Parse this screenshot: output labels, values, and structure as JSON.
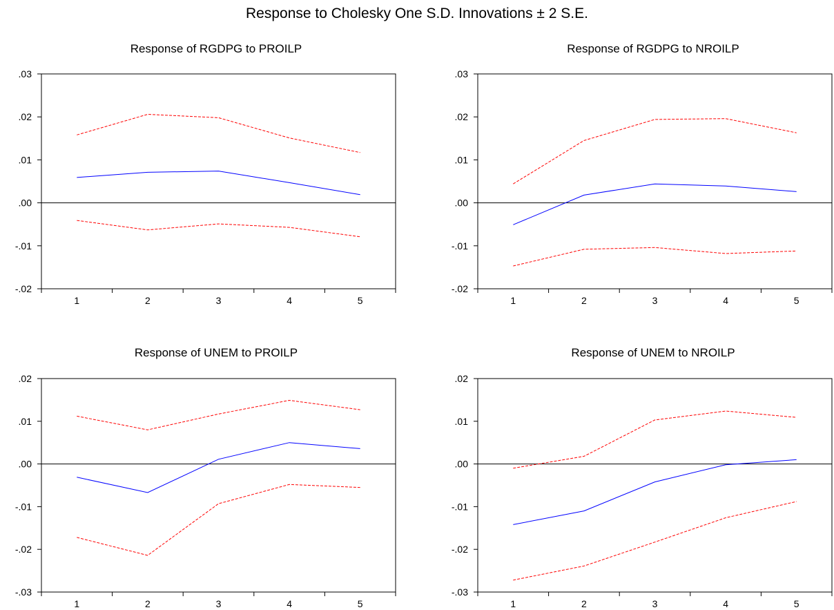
{
  "title": "Response to Cholesky One S.D. Innovations ± 2 S.E.",
  "colors": {
    "response": "#0000ff",
    "bands": "#ff0000",
    "frame": "#000000"
  },
  "chart_data": [
    {
      "type": "line",
      "title": "Response of RGDPG to PROILP",
      "categories": [
        "1",
        "2",
        "3",
        "4",
        "5"
      ],
      "ylim": [
        -0.02,
        0.03
      ],
      "yticks": [
        ".03",
        ".02",
        ".01",
        ".00",
        "-.01",
        "-.02"
      ],
      "ytick_values": [
        0.03,
        0.02,
        0.01,
        0.0,
        -0.01,
        -0.02
      ],
      "zero_line": true,
      "series": [
        {
          "role": "response",
          "style": "solid",
          "color": "#0000ff",
          "values": [
            0.0059,
            0.0071,
            0.0074,
            0.0047,
            0.0019
          ]
        },
        {
          "role": "upper",
          "style": "dashed",
          "color": "#ff0000",
          "values": [
            0.0158,
            0.0206,
            0.0198,
            0.0151,
            0.0117
          ]
        },
        {
          "role": "lower",
          "style": "dashed",
          "color": "#ff0000",
          "values": [
            -0.0041,
            -0.0063,
            -0.0049,
            -0.0057,
            -0.0079
          ]
        }
      ]
    },
    {
      "type": "line",
      "title": "Response of RGDPG to NROILP",
      "categories": [
        "1",
        "2",
        "3",
        "4",
        "5"
      ],
      "ylim": [
        -0.02,
        0.03
      ],
      "yticks": [
        ".03",
        ".02",
        ".01",
        ".00",
        "-.01",
        "-.02"
      ],
      "ytick_values": [
        0.03,
        0.02,
        0.01,
        0.0,
        -0.01,
        -0.02
      ],
      "zero_line": true,
      "series": [
        {
          "role": "response",
          "style": "solid",
          "color": "#0000ff",
          "values": [
            -0.0051,
            0.0018,
            0.0044,
            0.0039,
            0.0026
          ]
        },
        {
          "role": "upper",
          "style": "dashed",
          "color": "#ff0000",
          "values": [
            0.0044,
            0.0145,
            0.0194,
            0.0196,
            0.0163
          ]
        },
        {
          "role": "lower",
          "style": "dashed",
          "color": "#ff0000",
          "values": [
            -0.0147,
            -0.0108,
            -0.0104,
            -0.0118,
            -0.0112
          ]
        }
      ]
    },
    {
      "type": "line",
      "title": "Response of UNEM to PROILP",
      "categories": [
        "1",
        "2",
        "3",
        "4",
        "5"
      ],
      "ylim": [
        -0.03,
        0.02
      ],
      "yticks": [
        ".02",
        ".01",
        ".00",
        "-.01",
        "-.02",
        "-.03"
      ],
      "ytick_values": [
        0.02,
        0.01,
        0.0,
        -0.01,
        -0.02,
        -0.03
      ],
      "zero_line": true,
      "series": [
        {
          "role": "response",
          "style": "solid",
          "color": "#0000ff",
          "values": [
            -0.0031,
            -0.0067,
            0.0011,
            0.005,
            0.0036
          ]
        },
        {
          "role": "upper",
          "style": "dashed",
          "color": "#ff0000",
          "values": [
            0.0112,
            0.008,
            0.0117,
            0.0149,
            0.0127
          ]
        },
        {
          "role": "lower",
          "style": "dashed",
          "color": "#ff0000",
          "values": [
            -0.0172,
            -0.0214,
            -0.0093,
            -0.0048,
            -0.0055
          ]
        }
      ]
    },
    {
      "type": "line",
      "title": "Response of UNEM to NROILP",
      "categories": [
        "1",
        "2",
        "3",
        "4",
        "5"
      ],
      "ylim": [
        -0.03,
        0.02
      ],
      "yticks": [
        ".02",
        ".01",
        ".00",
        "-.01",
        "-.02",
        "-.03"
      ],
      "ytick_values": [
        0.02,
        0.01,
        0.0,
        -0.01,
        -0.02,
        -0.03
      ],
      "zero_line": true,
      "series": [
        {
          "role": "response",
          "style": "solid",
          "color": "#0000ff",
          "values": [
            -0.0142,
            -0.011,
            -0.0042,
            -0.0002,
            0.001
          ]
        },
        {
          "role": "upper",
          "style": "dashed",
          "color": "#ff0000",
          "values": [
            -0.001,
            0.0018,
            0.0103,
            0.0124,
            0.0109
          ]
        },
        {
          "role": "lower",
          "style": "dashed",
          "color": "#ff0000",
          "values": [
            -0.0272,
            -0.0239,
            -0.0183,
            -0.0126,
            -0.0088
          ]
        }
      ]
    }
  ]
}
